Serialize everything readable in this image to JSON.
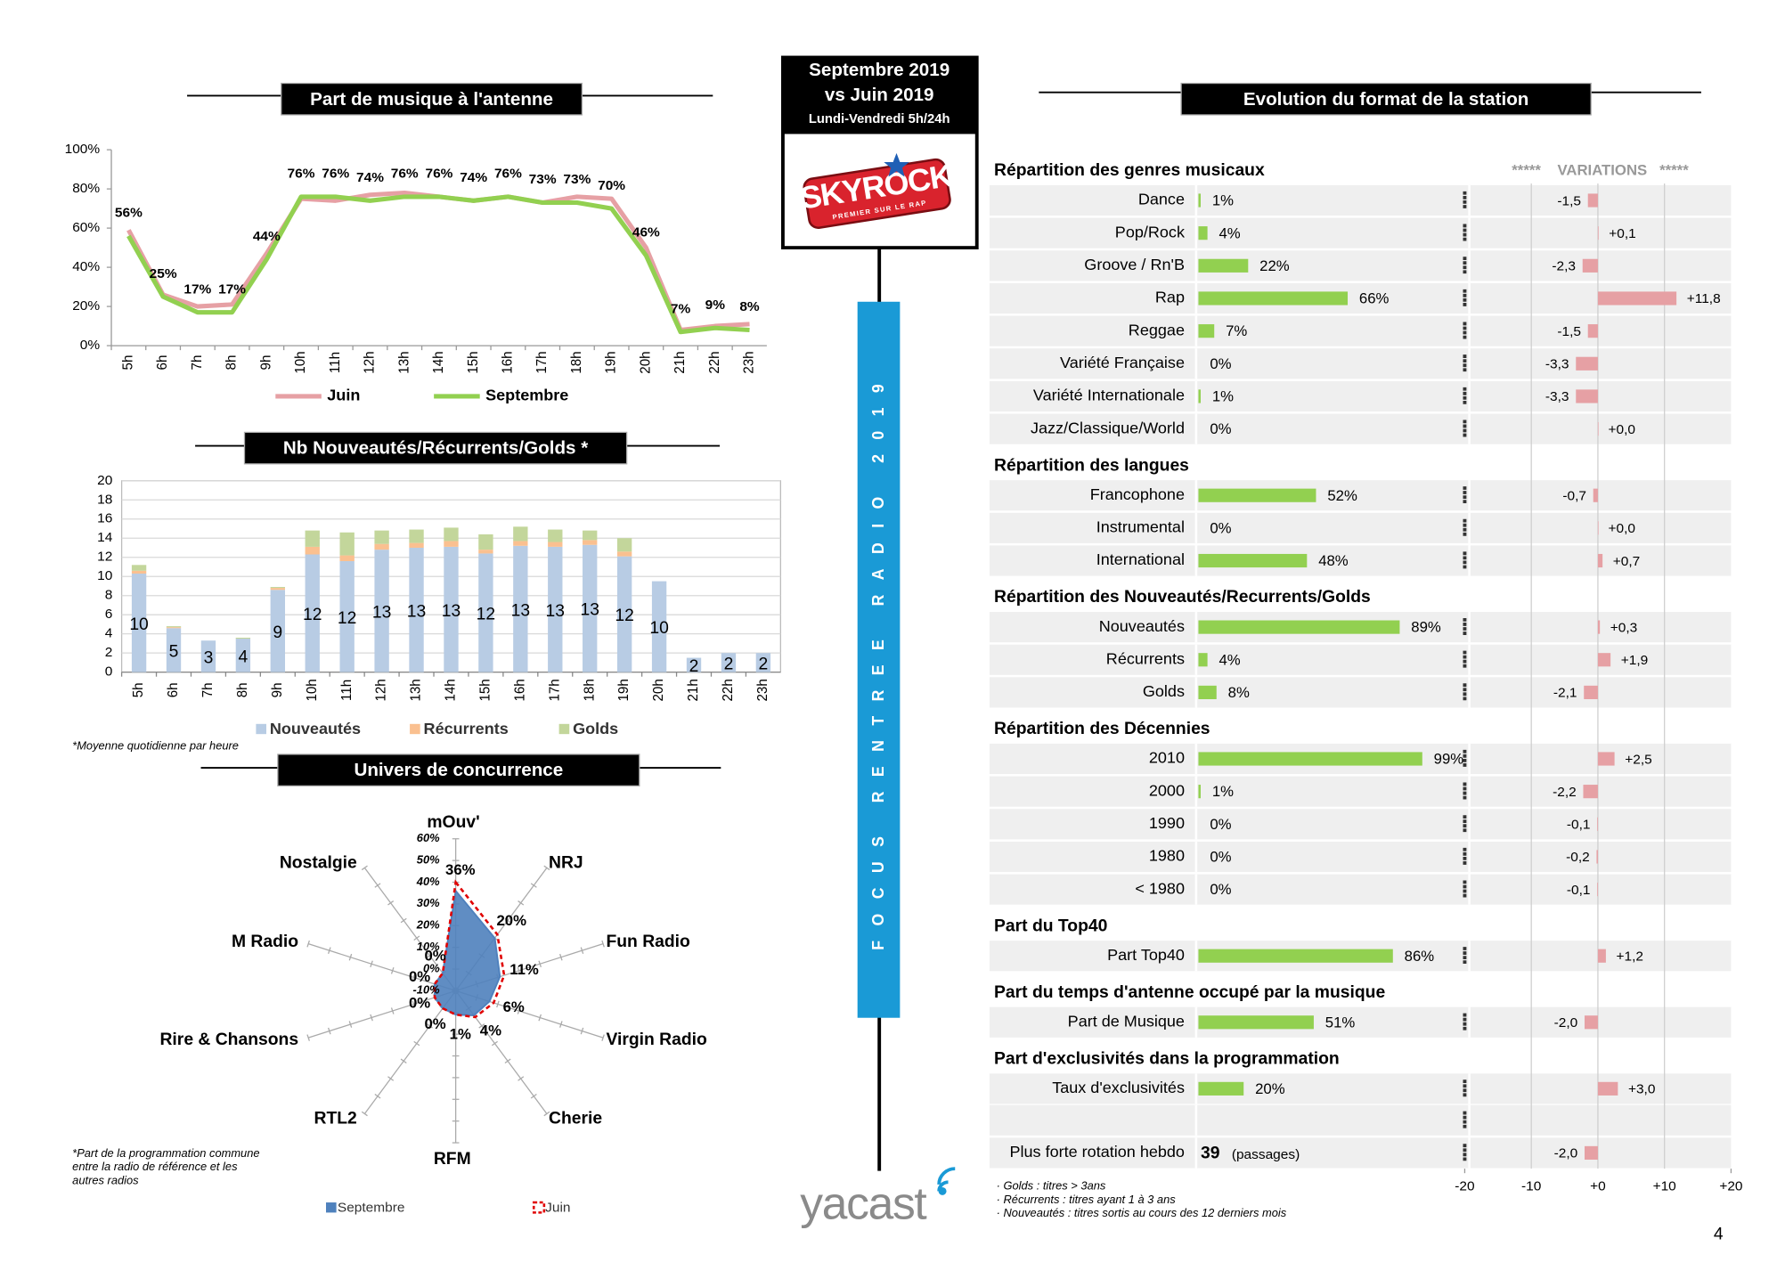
{
  "header": {
    "period": "Septembre 2019",
    "compare": "vs Juin 2019",
    "slot": "Lundi-Vendredi 5h/24h",
    "logo": "SKYROCK",
    "logo_tagline": "PREMIER SUR LE RAP",
    "banner": "FOCUS RENTREE RADIO 2019",
    "brand": "yacast",
    "page": "4"
  },
  "chart_data": [
    {
      "type": "line",
      "title": "Part de musique à l'antenne",
      "categories": [
        "5h",
        "6h",
        "7h",
        "8h",
        "9h",
        "10h",
        "11h",
        "12h",
        "13h",
        "14h",
        "15h",
        "16h",
        "17h",
        "18h",
        "19h",
        "20h",
        "21h",
        "22h",
        "23h"
      ],
      "series": [
        {
          "name": "Juin",
          "color": "#e6a0a4",
          "values": [
            59,
            26,
            20,
            21,
            47,
            75,
            74,
            77,
            78,
            76,
            74,
            76,
            73,
            76,
            75,
            50,
            8,
            10,
            11
          ]
        },
        {
          "name": "Septembre",
          "color": "#92d050",
          "values": [
            56,
            25,
            17,
            17,
            44,
            76,
            76,
            74,
            76,
            76,
            74,
            76,
            73,
            73,
            70,
            46,
            7,
            9,
            8
          ],
          "value_labels": [
            "56%",
            "25%",
            "17%",
            "17%",
            "44%",
            "76%",
            "76%",
            "74%",
            "76%",
            "76%",
            "74%",
            "76%",
            "73%",
            "73%",
            "70%",
            "46%",
            "7%",
            "9%",
            "8%"
          ]
        }
      ],
      "ylim": [
        0,
        100
      ],
      "yticks": [
        {
          "value": 0,
          "label": "0%"
        },
        {
          "value": 20,
          "label": "20%"
        },
        {
          "value": 40,
          "label": "40%"
        },
        {
          "value": 60,
          "label": "60%"
        },
        {
          "value": 80,
          "label": "80%"
        },
        {
          "value": 100,
          "label": "100%"
        }
      ],
      "legend": "bottom"
    },
    {
      "type": "bar",
      "stacked": true,
      "title": "Nb Nouveautés/Récurrents/Golds *",
      "note": "*Moyenne quotidienne par heure",
      "categories": [
        "5h",
        "6h",
        "7h",
        "8h",
        "9h",
        "10h",
        "11h",
        "12h",
        "13h",
        "14h",
        "15h",
        "16h",
        "17h",
        "18h",
        "19h",
        "20h",
        "21h",
        "22h",
        "23h"
      ],
      "series": [
        {
          "name": "Nouveautés",
          "color": "#b8cce4",
          "values": [
            10.3,
            4.6,
            3.3,
            3.5,
            8.6,
            12.3,
            11.6,
            12.8,
            13,
            13.1,
            12.4,
            13.2,
            13.1,
            13.3,
            12.1,
            9.5,
            1.5,
            2,
            2
          ],
          "value_labels": [
            "10",
            "5",
            "3",
            "4",
            "9",
            "12",
            "12",
            "13",
            "13",
            "13",
            "12",
            "13",
            "13",
            "13",
            "12",
            "10",
            "2",
            "2",
            "2"
          ]
        },
        {
          "name": "Récurrents",
          "color": "#fac090",
          "values": [
            0.3,
            0.1,
            0,
            0,
            0.2,
            0.8,
            0.6,
            0.6,
            0.5,
            0.6,
            0.4,
            0.5,
            0.5,
            0.5,
            0.5,
            0,
            0,
            0,
            0
          ]
        },
        {
          "name": "Golds",
          "color": "#c3d69b",
          "values": [
            0.6,
            0.1,
            0,
            0.1,
            0.1,
            1.7,
            2.4,
            1.4,
            1.4,
            1.4,
            1.6,
            1.5,
            1.3,
            1,
            1.4,
            0,
            0,
            0,
            0
          ]
        }
      ],
      "ylim": [
        0,
        20
      ],
      "yticks": [
        0,
        2,
        4,
        6,
        8,
        10,
        12,
        14,
        16,
        18,
        20
      ],
      "grid": true,
      "legend": "bottom"
    },
    {
      "type": "radar",
      "title": "Univers de concurrence",
      "note": [
        "*Part de la programmation commune",
        "entre la radio de référence et les",
        "autres radios"
      ],
      "categories": [
        "mOuv'",
        "NRJ",
        "Fun Radio",
        "Virgin Radio",
        "Cherie",
        "RFM",
        "RTL2",
        "Rire & Chansons",
        "M Radio",
        "Nostalgie"
      ],
      "series": [
        {
          "name": "Septembre",
          "color": "#4f81bd",
          "values": [
            36,
            20,
            11,
            6,
            4,
            1,
            0,
            0,
            0,
            0
          ],
          "value_labels": [
            "36%",
            "20%",
            "11%",
            "6%",
            "4%",
            "1%",
            "0%",
            "0%",
            "0%",
            "0%"
          ]
        },
        {
          "name": "Juin",
          "color": "#e00000",
          "values": [
            40,
            22,
            13,
            8,
            5,
            1,
            0,
            0,
            0,
            0
          ]
        }
      ],
      "rlim": [
        -10,
        60
      ],
      "rticks": [
        {
          "value": -10,
          "label": "-10%"
        },
        {
          "value": 0,
          "label": "0%"
        },
        {
          "value": 10,
          "label": "10%"
        },
        {
          "value": 20,
          "label": "20%"
        },
        {
          "value": 30,
          "label": "30%"
        },
        {
          "value": 40,
          "label": "40%"
        },
        {
          "value": 50,
          "label": "50%"
        },
        {
          "value": 60,
          "label": "60%"
        }
      ],
      "legend": "bottom"
    }
  ],
  "format": {
    "title": "Evolution du format de la station",
    "variations": "*****    VARIATIONS   *****",
    "share_color": "#92d050",
    "variation_color": "#e6a0a4",
    "xlim": [
      -20,
      20
    ],
    "xticks": [
      -20,
      -10,
      {
        "value": 0,
        "label": "+0"
      },
      {
        "value": 10,
        "label": "+10"
      },
      {
        "value": 20,
        "label": "+20"
      }
    ],
    "sections": [
      {
        "title": "Répartition des genres musicaux",
        "rows": [
          {
            "label": "Dance",
            "share": 1,
            "share_label": "1%",
            "variation": -1.5,
            "variation_label": "-1,5"
          },
          {
            "label": "Pop/Rock",
            "share": 4,
            "share_label": "4%",
            "variation": 0.1,
            "variation_label": "+0,1"
          },
          {
            "label": "Groove / Rn'B",
            "share": 22,
            "share_label": "22%",
            "variation": -2.3,
            "variation_label": "-2,3"
          },
          {
            "label": "Rap",
            "share": 66,
            "share_label": "66%",
            "variation": 11.8,
            "variation_label": "+11,8"
          },
          {
            "label": "Reggae",
            "share": 7,
            "share_label": "7%",
            "variation": -1.5,
            "variation_label": "-1,5"
          },
          {
            "label": "Variété Française",
            "share": 0,
            "share_label": "0%",
            "variation": -3.3,
            "variation_label": "-3,3"
          },
          {
            "label": "Variété Internationale",
            "share": 1,
            "share_label": "1%",
            "variation": -3.3,
            "variation_label": "-3,3"
          },
          {
            "label": "Jazz/Classique/World",
            "share": 0,
            "share_label": "0%",
            "variation": 0,
            "variation_label": "+0,0"
          }
        ]
      },
      {
        "title": "Répartition des langues",
        "rows": [
          {
            "label": "Francophone",
            "share": 52,
            "share_label": "52%",
            "variation": -0.7,
            "variation_label": "-0,7"
          },
          {
            "label": "Instrumental",
            "share": 0,
            "share_label": "0%",
            "variation": 0,
            "variation_label": "+0,0"
          },
          {
            "label": "International",
            "share": 48,
            "share_label": "48%",
            "variation": 0.7,
            "variation_label": "+0,7"
          }
        ]
      },
      {
        "title": "Répartition des Nouveautés/Recurrents/Golds",
        "rows": [
          {
            "label": "Nouveautés",
            "share": 89,
            "share_label": "89%",
            "variation": 0.3,
            "variation_label": "+0,3"
          },
          {
            "label": "Récurrents",
            "share": 4,
            "share_label": "4%",
            "variation": 1.9,
            "variation_label": "+1,9"
          },
          {
            "label": "Golds",
            "share": 8,
            "share_label": "8%",
            "variation": -2.1,
            "variation_label": "-2,1"
          }
        ]
      },
      {
        "title": "Répartition des Décennies",
        "rows": [
          {
            "label": "2010",
            "share": 99,
            "share_label": "99%",
            "variation": 2.5,
            "variation_label": "+2,5"
          },
          {
            "label": "2000",
            "share": 1,
            "share_label": "1%",
            "variation": -2.2,
            "variation_label": "-2,2"
          },
          {
            "label": "1990",
            "share": 0,
            "share_label": "0%",
            "variation": -0.1,
            "variation_label": "-0,1"
          },
          {
            "label": "1980",
            "share": 0,
            "share_label": "0%",
            "variation": -0.2,
            "variation_label": "-0,2"
          },
          {
            "label": "< 1980",
            "share": 0,
            "share_label": "0%",
            "variation": -0.1,
            "variation_label": "-0,1"
          }
        ]
      },
      {
        "title": "Part du Top40",
        "rows": [
          {
            "label": "Part Top40",
            "share": 86,
            "share_label": "86%",
            "variation": 1.2,
            "variation_label": "+1,2"
          }
        ]
      },
      {
        "title": "Part du temps d'antenne occupé par la musique",
        "rows": [
          {
            "label": "Part de Musique",
            "share": 51,
            "share_label": "51%",
            "variation": -2,
            "variation_label": "-2,0"
          }
        ]
      },
      {
        "title": "Part d'exclusivités dans la programmation",
        "rows": [
          {
            "label": "Taux d'exclusivités",
            "share": 20,
            "share_label": "20%",
            "variation": 3,
            "variation_label": "+3,0"
          }
        ]
      }
    ],
    "rotation": {
      "label": "Plus forte rotation hebdo",
      "value": 39,
      "unit": "(passages)",
      "variation": -2,
      "variation_label": "-2,0"
    },
    "notes": [
      "· Golds : titres > 3ans",
      "· Récurrents : titres ayant 1 à 3 ans",
      "· Nouveautés : titres sortis au cours des 12 derniers mois"
    ]
  }
}
